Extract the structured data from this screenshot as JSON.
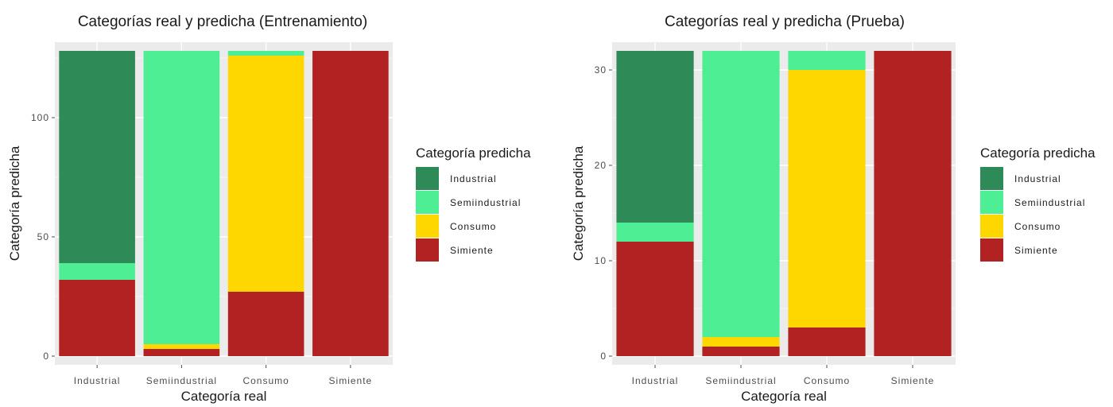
{
  "legend": {
    "title": "Categoría predicha",
    "entries": [
      {
        "name": "Industrial",
        "color": "#2e8b57"
      },
      {
        "name": "Semiindustrial",
        "color": "#4eee94"
      },
      {
        "name": "Consumo",
        "color": "#ffd700"
      },
      {
        "name": "Simiente",
        "color": "#b22222"
      }
    ]
  },
  "chart_data": [
    {
      "type": "bar",
      "stacked": true,
      "title": "Categorías real y predicha (Entrenamiento)",
      "xlabel": "Categoría real",
      "ylabel": "Categoría predicha",
      "categories": [
        "Industrial",
        "Semiindustrial",
        "Consumo",
        "Simiente"
      ],
      "yticks": [
        0,
        50,
        100
      ],
      "ylim": [
        0,
        128
      ],
      "series": [
        {
          "name": "Simiente",
          "color": "#b22222",
          "values": [
            32,
            3,
            27,
            128
          ]
        },
        {
          "name": "Consumo",
          "color": "#ffd700",
          "values": [
            0,
            2,
            99,
            0
          ]
        },
        {
          "name": "Semiindustrial",
          "color": "#4eee94",
          "values": [
            7,
            123,
            2,
            0
          ]
        },
        {
          "name": "Industrial",
          "color": "#2e8b57",
          "values": [
            89,
            0,
            0,
            0
          ]
        }
      ],
      "grid": true,
      "legend_position": "right"
    },
    {
      "type": "bar",
      "stacked": true,
      "title": "Categorías real y predicha (Prueba)",
      "xlabel": "Categoría real",
      "ylabel": "Categoría predicha",
      "categories": [
        "Industrial",
        "Semiindustrial",
        "Consumo",
        "Simiente"
      ],
      "yticks": [
        0,
        10,
        20,
        30
      ],
      "ylim": [
        0,
        32
      ],
      "series": [
        {
          "name": "Simiente",
          "color": "#b22222",
          "values": [
            12,
            1,
            3,
            32
          ]
        },
        {
          "name": "Consumo",
          "color": "#ffd700",
          "values": [
            0,
            1,
            27,
            0
          ]
        },
        {
          "name": "Semiindustrial",
          "color": "#4eee94",
          "values": [
            2,
            30,
            2,
            0
          ]
        },
        {
          "name": "Industrial",
          "color": "#2e8b57",
          "values": [
            18,
            0,
            0,
            0
          ]
        }
      ],
      "grid": true,
      "legend_position": "right"
    }
  ]
}
